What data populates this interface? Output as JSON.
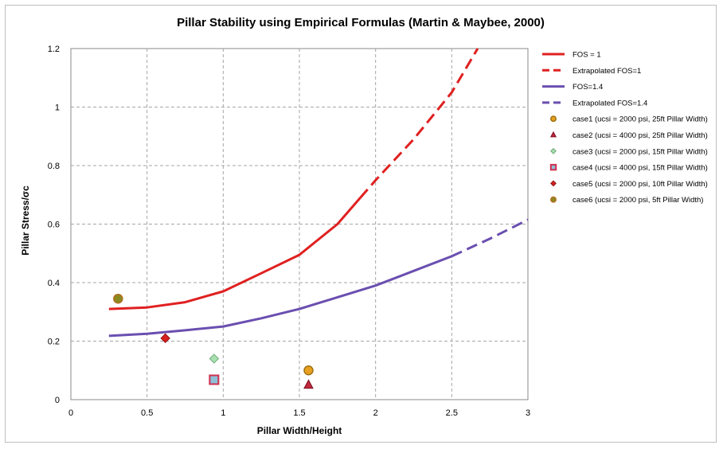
{
  "chart_data": {
    "type": "line",
    "title": "Pillar Stability using Empirical Formulas (Martin & Maybee, 2000)",
    "xlabel": "Pillar Width/Height",
    "ylabel": "Pillar Stress/σc",
    "xlim": [
      0,
      3
    ],
    "ylim": [
      0,
      1.2
    ],
    "x_ticks": [
      0,
      0.5,
      1,
      1.5,
      2,
      2.5,
      3
    ],
    "x_tick_labels": [
      "0",
      "0.5",
      "1",
      "1.5",
      "2",
      "2.5",
      "3"
    ],
    "y_ticks": [
      0,
      0.2,
      0.4,
      0.6,
      0.8,
      1,
      1.2
    ],
    "y_tick_labels": [
      "0",
      "0.2",
      "0.4",
      "0.6",
      "0.8",
      "1",
      "1.2"
    ],
    "grid": true,
    "legend_position": "right",
    "series": [
      {
        "name": "FOS = 1",
        "kind": "line",
        "style": "solid",
        "color": "#e02020",
        "x": [
          0.25,
          0.5,
          0.75,
          1.0,
          1.25,
          1.5,
          1.75,
          1.9
        ],
        "y": [
          0.31,
          0.315,
          0.333,
          0.37,
          0.432,
          0.495,
          0.6,
          0.69
        ]
      },
      {
        "name": "Extrapolated FOS=1",
        "kind": "line",
        "style": "dashed",
        "color": "#e02020",
        "x": [
          1.9,
          2.0,
          2.25,
          2.5,
          2.67
        ],
        "y": [
          0.69,
          0.75,
          0.89,
          1.05,
          1.2
        ]
      },
      {
        "name": "FOS=1.4",
        "kind": "line",
        "style": "solid",
        "color": "#6a4fb0",
        "x": [
          0.25,
          0.5,
          0.75,
          1.0,
          1.25,
          1.5,
          1.75,
          2.0,
          2.25,
          2.5
        ],
        "y": [
          0.218,
          0.225,
          0.237,
          0.25,
          0.278,
          0.31,
          0.35,
          0.39,
          0.44,
          0.49
        ]
      },
      {
        "name": "Extrapolated FOS=1.4",
        "kind": "line",
        "style": "dashed",
        "color": "#6a4fb0",
        "x": [
          2.5,
          2.75,
          3.0
        ],
        "y": [
          0.49,
          0.55,
          0.615
        ]
      },
      {
        "name": "case1 (ucsi = 2000 psi, 25ft Pillar Width)",
        "kind": "point",
        "marker": "circle",
        "color": "#e8a020",
        "stroke": "#a07010",
        "x": [
          1.56
        ],
        "y": [
          0.1
        ]
      },
      {
        "name": "case2 (ucsi = 4000 psi, 25ft Pillar Width)",
        "kind": "point",
        "marker": "triangle",
        "color": "#c0283c",
        "stroke": "#7a1020",
        "x": [
          1.56
        ],
        "y": [
          0.05
        ]
      },
      {
        "name": "case3 (ucsi = 2000 psi, 15ft Pillar Width)",
        "kind": "point",
        "marker": "diamond",
        "color": "#a8e0b0",
        "stroke": "#70a878",
        "x": [
          0.94
        ],
        "y": [
          0.14
        ]
      },
      {
        "name": "case4 (ucsi = 4000 psi, 15ft Pillar Width)",
        "kind": "point",
        "marker": "square",
        "color": "#8ec0d8",
        "stroke": "#d03050",
        "x": [
          0.94
        ],
        "y": [
          0.068
        ]
      },
      {
        "name": "case5 (ucsi = 2000 psi, 10ft Pillar Width)",
        "kind": "point",
        "marker": "diamond",
        "color": "#d82020",
        "stroke": "#901010",
        "x": [
          0.62
        ],
        "y": [
          0.21
        ]
      },
      {
        "name": "case6 (ucsi = 2000 psi, 5ft Pillar Width)",
        "kind": "point",
        "marker": "circle",
        "color": "#8a8a20",
        "stroke": "#b07020",
        "x": [
          0.31
        ],
        "y": [
          0.345
        ]
      }
    ]
  }
}
